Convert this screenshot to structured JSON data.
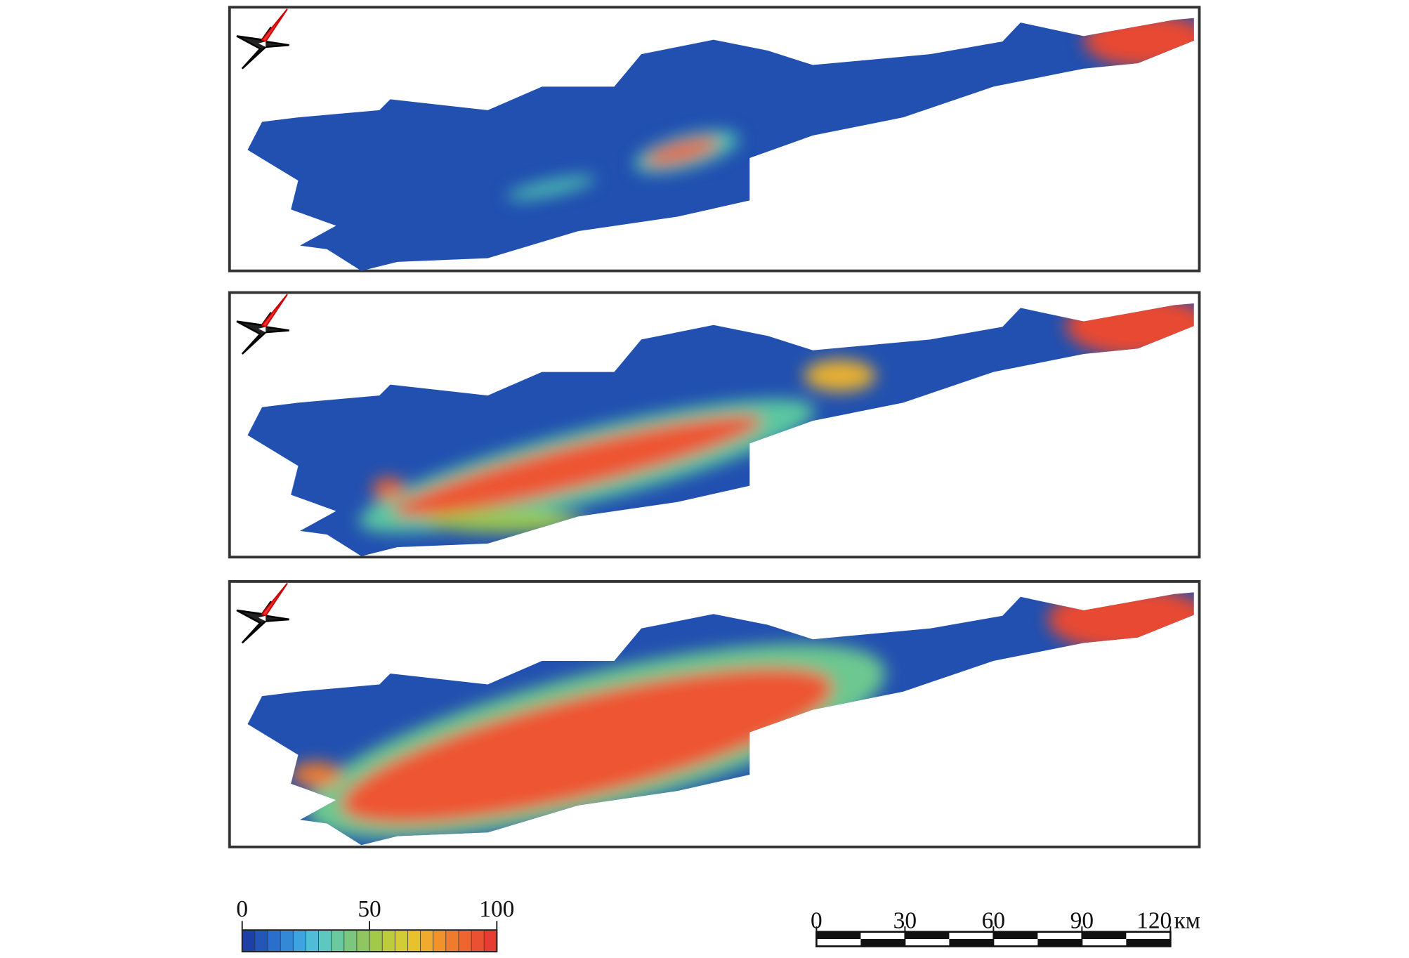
{
  "colorbar": {
    "labels": [
      0,
      50,
      100
    ],
    "colors": [
      "#1f3fa8",
      "#2456b8",
      "#2b6fcc",
      "#3389d6",
      "#3ea3de",
      "#4fbcd8",
      "#5cc8c0",
      "#6bc9a0",
      "#7cc67f",
      "#8fc661",
      "#a3c94a",
      "#bccc3c",
      "#d4cc34",
      "#e8c22e",
      "#f0aa2c",
      "#f2922c",
      "#f07a2e",
      "#ee6530",
      "#ea5032",
      "#e63c34"
    ]
  },
  "scale_bar": {
    "labels": [
      0,
      30,
      60,
      90,
      120
    ],
    "unit": "км"
  }
}
